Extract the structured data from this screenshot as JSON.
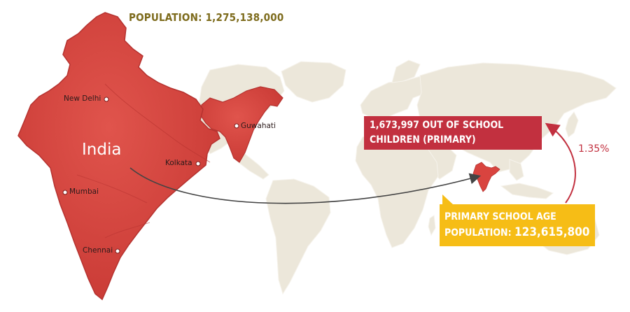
{
  "population": {
    "label": "POPULATION:",
    "value": "1,275,138,000"
  },
  "india_label": "India",
  "cities": [
    "New Delhi",
    "Guwahati",
    "Kolkata",
    "Mumbai",
    "Chennai"
  ],
  "out_of_school": {
    "value": "1,673,997",
    "line1": "OUT OF SCHOOL",
    "line2": "CHILDREN (PRIMARY)"
  },
  "primary_school_age": {
    "line1": "PRIMARY SCHOOL AGE",
    "line2_label": "POPULATION:",
    "value": "123,615,800"
  },
  "percentage": "1.35%",
  "colors": {
    "india_red": "#d9443f",
    "india_dark": "#b5322f",
    "world_land": "#ece7da",
    "title_olive": "#7d6b1c",
    "box_red": "#c2303f",
    "box_yellow": "#f6bd16"
  }
}
